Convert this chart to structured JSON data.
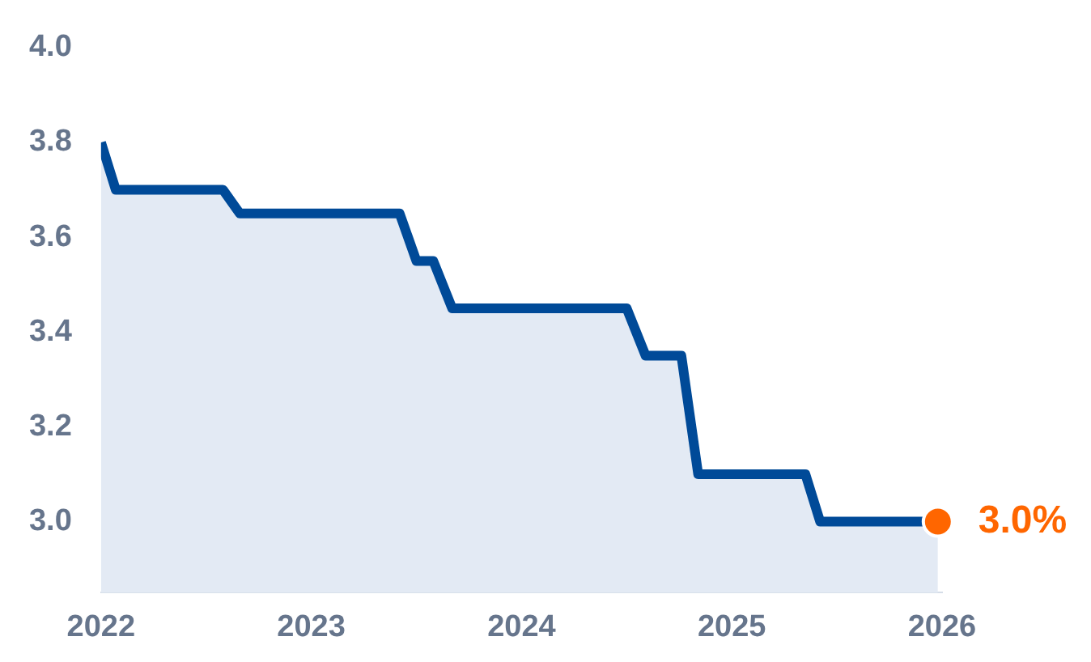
{
  "chart_data": {
    "type": "area",
    "xlim": [
      2022,
      2026
    ],
    "xticks": [
      2022,
      2023,
      2024,
      2025,
      2026
    ],
    "ylim": [
      2.85,
      4.0
    ],
    "yticks": [
      {
        "value": 3.0,
        "label": "3.0"
      },
      {
        "value": 3.2,
        "label": "3.2"
      },
      {
        "value": 3.4,
        "label": "3.4"
      },
      {
        "value": 3.6,
        "label": "3.6"
      },
      {
        "value": 3.8,
        "label": "3.8"
      },
      {
        "value": 4.0,
        "label": "4.0"
      }
    ],
    "grid": false,
    "legend": false,
    "line_style": "solid",
    "series": [
      {
        "color": "#004a98",
        "marker": "none",
        "x": [
          2022,
          2022.07,
          2022.58,
          2022.66,
          2023.42,
          2023.5,
          2023.58,
          2023.67,
          2024.5,
          2024.59,
          2024.76,
          2024.84,
          2025.35,
          2025.42,
          2025.98
        ],
        "values": [
          3.8,
          3.7,
          3.7,
          3.65,
          3.65,
          3.55,
          3.55,
          3.45,
          3.45,
          3.35,
          3.35,
          3.1,
          3.1,
          3.0,
          3.0
        ]
      },
      {
        "type": "scatter",
        "marker": "circle",
        "color": "#ff6600",
        "x": [
          2025.98
        ],
        "values": [
          3.0
        ]
      }
    ],
    "annotations": [
      {
        "text": "3.0%",
        "x": 2025.98,
        "y": 3.0
      }
    ]
  }
}
